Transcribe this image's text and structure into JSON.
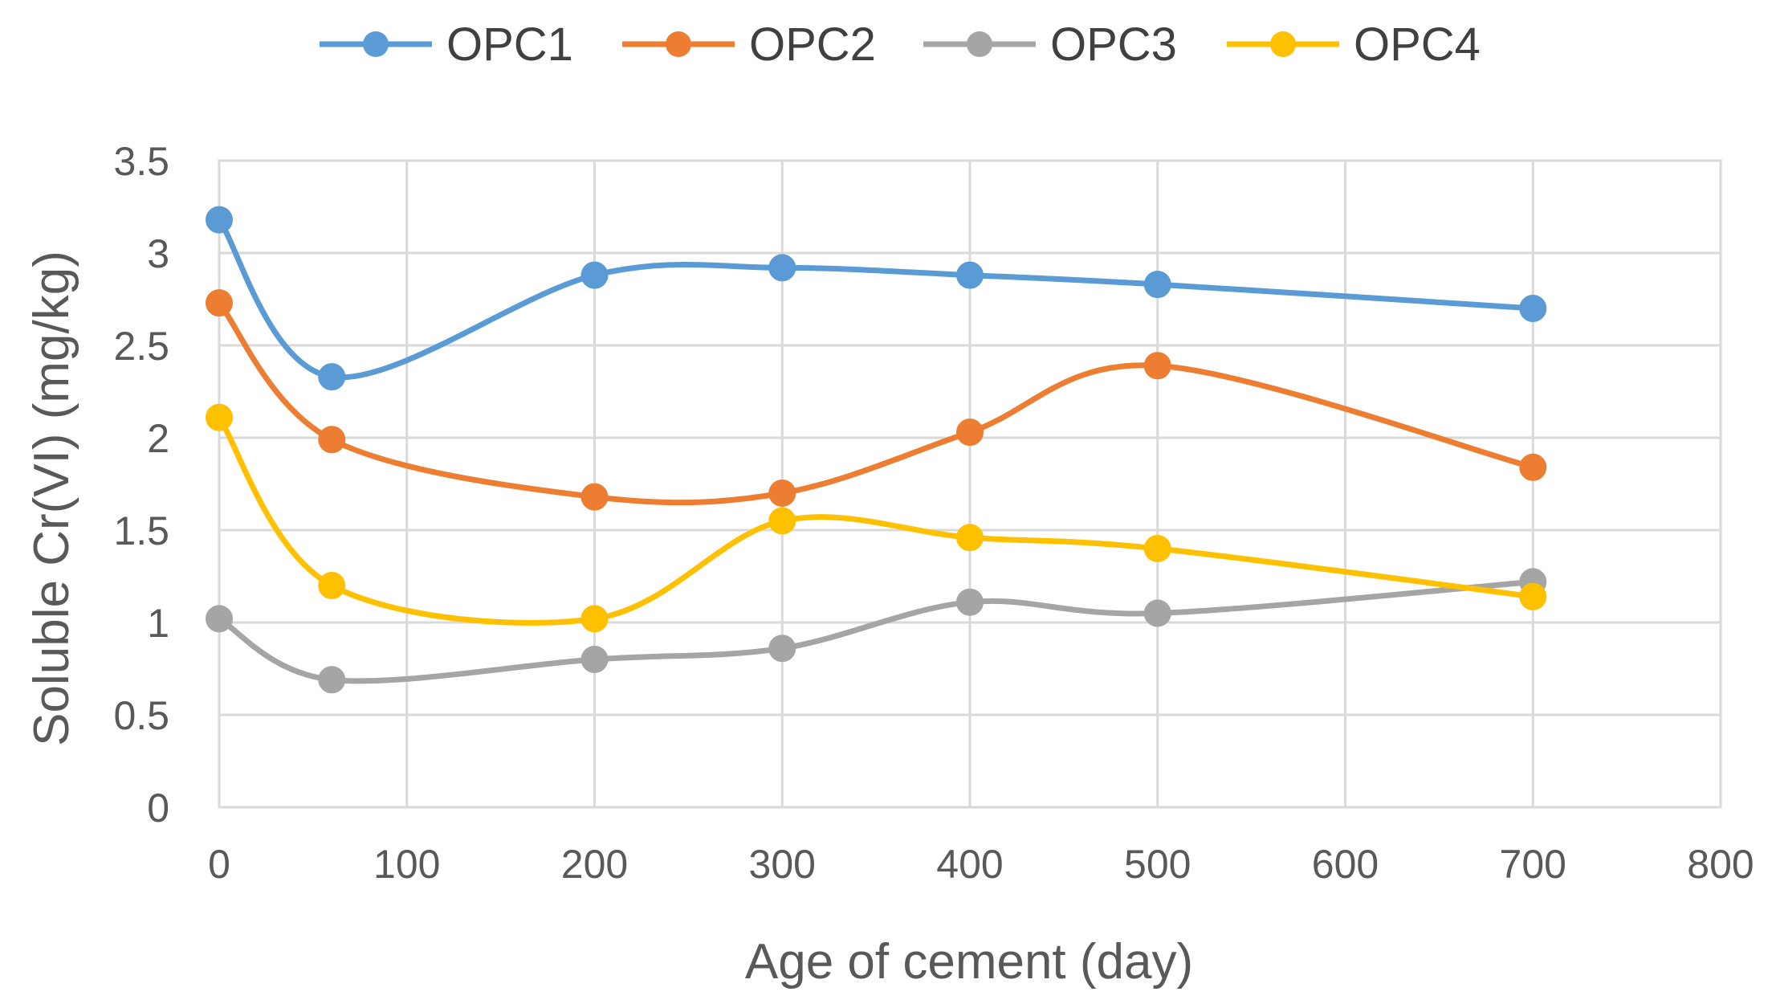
{
  "chart_data": {
    "type": "line",
    "title": "",
    "xlabel": "Age of cement (day)",
    "ylabel": "Soluble Cr(VI) (mg/kg)",
    "xlim": [
      0,
      800
    ],
    "ylim": [
      0,
      3.5
    ],
    "x_ticks": [
      "0",
      "100",
      "200",
      "300",
      "400",
      "500",
      "600",
      "700",
      "800"
    ],
    "y_ticks": [
      "0",
      "0.5",
      "1",
      "1.5",
      "2",
      "2.5",
      "3",
      "3.5"
    ],
    "grid": true,
    "legend_position": "top",
    "x": [
      0,
      60,
      200,
      300,
      400,
      500,
      700
    ],
    "series": [
      {
        "name": "OPC1",
        "color": "#5B9BD5",
        "values": [
          3.18,
          2.33,
          2.88,
          2.92,
          2.88,
          2.83,
          2.7
        ]
      },
      {
        "name": "OPC2",
        "color": "#ED7D31",
        "values": [
          2.73,
          1.99,
          1.68,
          1.7,
          2.03,
          2.39,
          1.84
        ]
      },
      {
        "name": "OPC3",
        "color": "#A5A5A5",
        "values": [
          1.02,
          0.69,
          0.8,
          0.86,
          1.11,
          1.05,
          1.22
        ]
      },
      {
        "name": "OPC4",
        "color": "#FFC000",
        "values": [
          2.11,
          1.2,
          1.02,
          1.55,
          1.46,
          1.4,
          1.14
        ]
      }
    ]
  }
}
